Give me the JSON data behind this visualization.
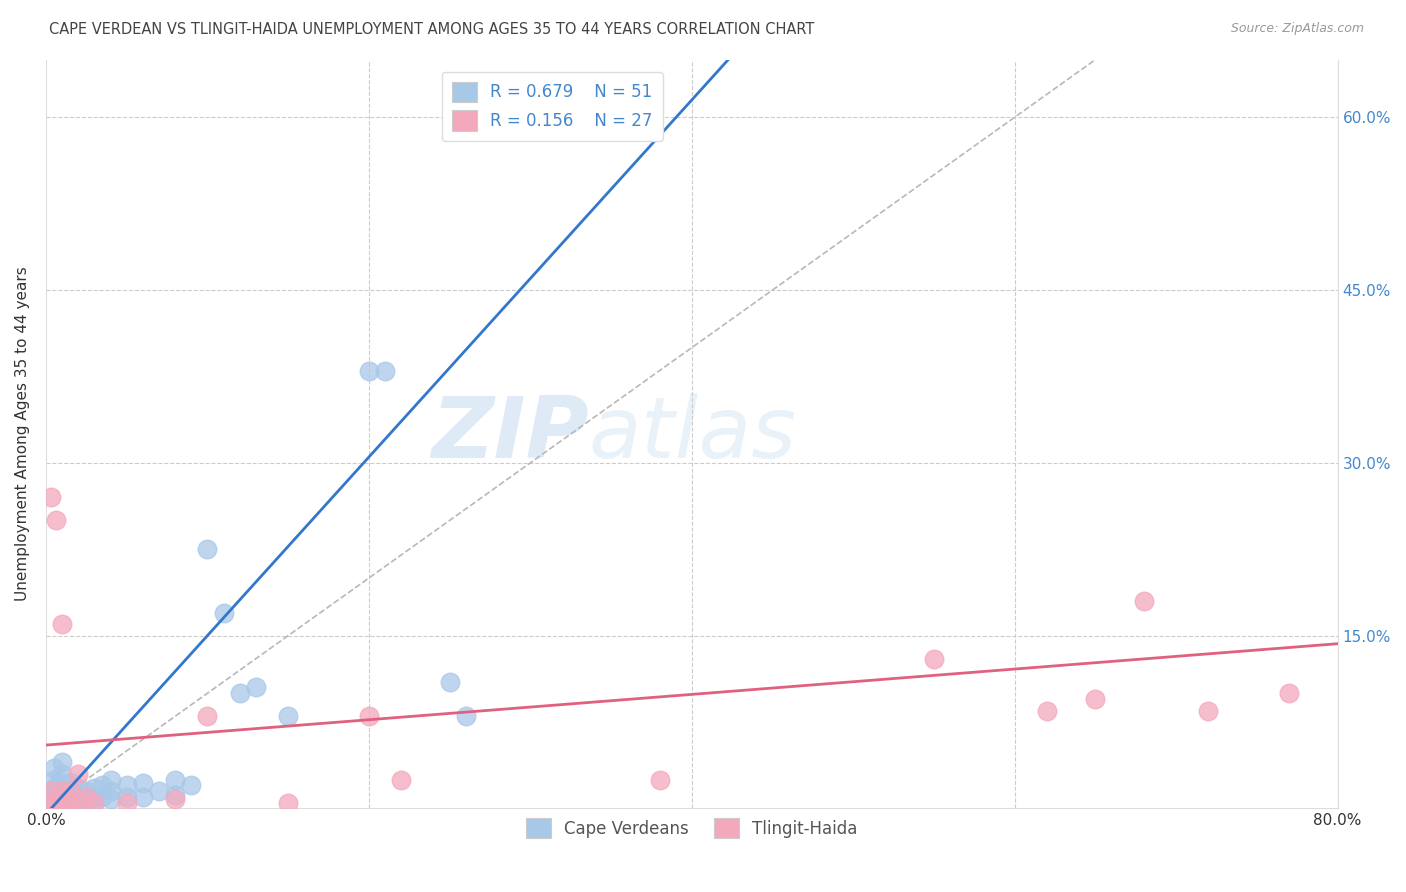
{
  "title": "CAPE VERDEAN VS TLINGIT-HAIDA UNEMPLOYMENT AMONG AGES 35 TO 44 YEARS CORRELATION CHART",
  "source": "Source: ZipAtlas.com",
  "ylabel": "Unemployment Among Ages 35 to 44 years",
  "xlim": [
    0.0,
    0.8
  ],
  "ylim": [
    0.0,
    0.65
  ],
  "xticks": [
    0.0,
    0.2,
    0.4,
    0.6,
    0.8
  ],
  "yticks": [
    0.0,
    0.15,
    0.3,
    0.45,
    0.6
  ],
  "blue_color": "#a8c8e8",
  "pink_color": "#f4a8bc",
  "blue_line_color": "#3377cc",
  "pink_line_color": "#e06080",
  "ref_line_color": "#b8b8b8",
  "legend_R_blue": "R = 0.679",
  "legend_N_blue": "N = 51",
  "legend_R_pink": "R = 0.156",
  "legend_N_pink": "N = 27",
  "watermark_zip": "ZIP",
  "watermark_atlas": "atlas",
  "blue_x": [
    0.005,
    0.005,
    0.005,
    0.005,
    0.005,
    0.008,
    0.008,
    0.008,
    0.01,
    0.01,
    0.01,
    0.01,
    0.01,
    0.013,
    0.013,
    0.013,
    0.016,
    0.016,
    0.016,
    0.016,
    0.02,
    0.02,
    0.02,
    0.025,
    0.025,
    0.025,
    0.03,
    0.03,
    0.03,
    0.035,
    0.035,
    0.04,
    0.04,
    0.04,
    0.05,
    0.05,
    0.06,
    0.06,
    0.07,
    0.08,
    0.08,
    0.09,
    0.1,
    0.11,
    0.12,
    0.13,
    0.15,
    0.2,
    0.21,
    0.25,
    0.26
  ],
  "blue_y": [
    0.005,
    0.012,
    0.018,
    0.025,
    0.035,
    0.005,
    0.015,
    0.022,
    0.005,
    0.01,
    0.018,
    0.03,
    0.04,
    0.005,
    0.012,
    0.022,
    0.005,
    0.01,
    0.015,
    0.022,
    0.005,
    0.01,
    0.018,
    0.005,
    0.01,
    0.015,
    0.005,
    0.01,
    0.018,
    0.01,
    0.02,
    0.008,
    0.015,
    0.025,
    0.01,
    0.02,
    0.01,
    0.022,
    0.015,
    0.012,
    0.025,
    0.02,
    0.225,
    0.17,
    0.1,
    0.105,
    0.08,
    0.38,
    0.38,
    0.11,
    0.08
  ],
  "pink_x": [
    0.003,
    0.003,
    0.003,
    0.006,
    0.006,
    0.01,
    0.01,
    0.01,
    0.015,
    0.015,
    0.02,
    0.02,
    0.025,
    0.03,
    0.05,
    0.08,
    0.1,
    0.15,
    0.2,
    0.22,
    0.38,
    0.55,
    0.62,
    0.65,
    0.68,
    0.72,
    0.77
  ],
  "pink_y": [
    0.005,
    0.015,
    0.27,
    0.005,
    0.25,
    0.005,
    0.015,
    0.16,
    0.005,
    0.015,
    0.005,
    0.03,
    0.01,
    0.005,
    0.005,
    0.008,
    0.08,
    0.005,
    0.08,
    0.025,
    0.025,
    0.13,
    0.085,
    0.095,
    0.18,
    0.085,
    0.1
  ]
}
